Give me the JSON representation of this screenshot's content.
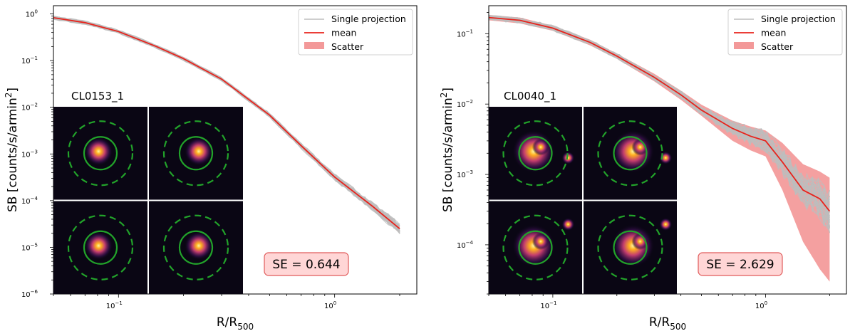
{
  "chart_data": [
    {
      "type": "line",
      "panel": "left",
      "xlabel": "R/R",
      "xlabel_sub": "500",
      "ylabel": "SB [counts/s/armin",
      "ylabel_sup": "2",
      "ylabel_end": "]",
      "xscale": "log",
      "yscale": "log",
      "xlim": [
        0.05,
        2.4
      ],
      "ylim": [
        1e-06,
        1.5
      ],
      "x_ticks": [
        {
          "value": 0.1,
          "label": "10",
          "exp": "−1"
        },
        {
          "value": 1,
          "label": "10",
          "exp": "0"
        }
      ],
      "y_ticks": [
        {
          "value": 1,
          "label": "10",
          "exp": "0"
        },
        {
          "value": 0.1,
          "label": "10",
          "exp": "−1"
        },
        {
          "value": 0.01,
          "label": "10",
          "exp": "−2"
        },
        {
          "value": 0.001,
          "label": "10",
          "exp": "−3"
        },
        {
          "value": 0.0001,
          "label": "10",
          "exp": "−4"
        },
        {
          "value": 1e-05,
          "label": "10",
          "exp": "−5"
        },
        {
          "value": 1e-06,
          "label": "10",
          "exp": "−6"
        }
      ],
      "legend": {
        "position": "top-right",
        "entries": [
          "Single projection",
          "mean",
          "Scatter"
        ]
      },
      "series": [
        {
          "name": "mean",
          "color": "#e8231c",
          "x": [
            0.05,
            0.07,
            0.1,
            0.15,
            0.2,
            0.3,
            0.5,
            0.7,
            1.0,
            1.5,
            2.0
          ],
          "y": [
            0.83,
            0.65,
            0.42,
            0.2,
            0.11,
            0.04,
            0.0068,
            0.0015,
            0.00032,
            7.5e-05,
            2.5e-05
          ]
        },
        {
          "name": "Scatter",
          "color": "#f08080",
          "x": [
            0.05,
            0.07,
            0.1,
            0.15,
            0.2,
            0.3,
            0.5,
            0.7,
            1.0,
            1.5,
            2.0
          ],
          "y_low": [
            0.78,
            0.62,
            0.4,
            0.19,
            0.1,
            0.037,
            0.0062,
            0.00135,
            0.00029,
            6.5e-05,
            2e-05
          ],
          "y_high": [
            0.88,
            0.69,
            0.44,
            0.21,
            0.12,
            0.043,
            0.0074,
            0.00165,
            0.00035,
            8.5e-05,
            3e-05
          ]
        }
      ],
      "projection_spread": 0.18,
      "cluster_label": "CL0153_1",
      "se_label": "SE = 0.644"
    },
    {
      "type": "line",
      "panel": "right",
      "xlabel": "R/R",
      "xlabel_sub": "500",
      "ylabel": "SB [counts/s/armin",
      "ylabel_sup": "2",
      "ylabel_end": "]",
      "xscale": "log",
      "yscale": "log",
      "xlim": [
        0.05,
        2.4
      ],
      "ylim": [
        2e-05,
        0.25
      ],
      "x_ticks": [
        {
          "value": 0.1,
          "label": "10",
          "exp": "−1"
        },
        {
          "value": 1,
          "label": "10",
          "exp": "0"
        }
      ],
      "y_ticks": [
        {
          "value": 0.1,
          "label": "10",
          "exp": "−1"
        },
        {
          "value": 0.01,
          "label": "10",
          "exp": "−2"
        },
        {
          "value": 0.001,
          "label": "10",
          "exp": "−3"
        },
        {
          "value": 0.0001,
          "label": "10",
          "exp": "−4"
        }
      ],
      "legend": {
        "position": "top-right",
        "entries": [
          "Single projection",
          "mean",
          "Scatter"
        ]
      },
      "series": [
        {
          "name": "mean",
          "color": "#e8231c",
          "x": [
            0.05,
            0.07,
            0.1,
            0.15,
            0.2,
            0.3,
            0.4,
            0.5,
            0.7,
            0.85,
            1.0,
            1.2,
            1.5,
            1.8,
            2.0
          ],
          "y": [
            0.17,
            0.155,
            0.12,
            0.075,
            0.048,
            0.024,
            0.0135,
            0.0082,
            0.0045,
            0.0035,
            0.003,
            0.0015,
            0.0006,
            0.00045,
            0.0003
          ]
        },
        {
          "name": "Scatter",
          "color": "#f08080",
          "x": [
            0.05,
            0.07,
            0.1,
            0.15,
            0.2,
            0.3,
            0.4,
            0.5,
            0.7,
            0.85,
            1.0,
            1.2,
            1.5,
            1.8,
            2.0
          ],
          "y_low": [
            0.155,
            0.14,
            0.11,
            0.068,
            0.044,
            0.021,
            0.0115,
            0.0068,
            0.003,
            0.0022,
            0.0018,
            0.0006,
            0.00011,
            4.5e-05,
            3e-05
          ],
          "y_high": [
            0.185,
            0.17,
            0.13,
            0.082,
            0.052,
            0.027,
            0.0155,
            0.0098,
            0.0058,
            0.0048,
            0.0042,
            0.0028,
            0.0014,
            0.0011,
            0.0009
          ]
        }
      ],
      "projection_spread": 0.6,
      "cluster_label": "CL0040_1",
      "se_label": "SE = 2.629"
    }
  ],
  "colors": {
    "mean": "#e8231c",
    "scatter": "#f08080",
    "projection": "#bdbdbd",
    "se_box_fill": "#ffd6d6",
    "se_box_edge": "#e05a5a",
    "inset_bg": "#0a0614",
    "aperture": "#22a32a"
  }
}
